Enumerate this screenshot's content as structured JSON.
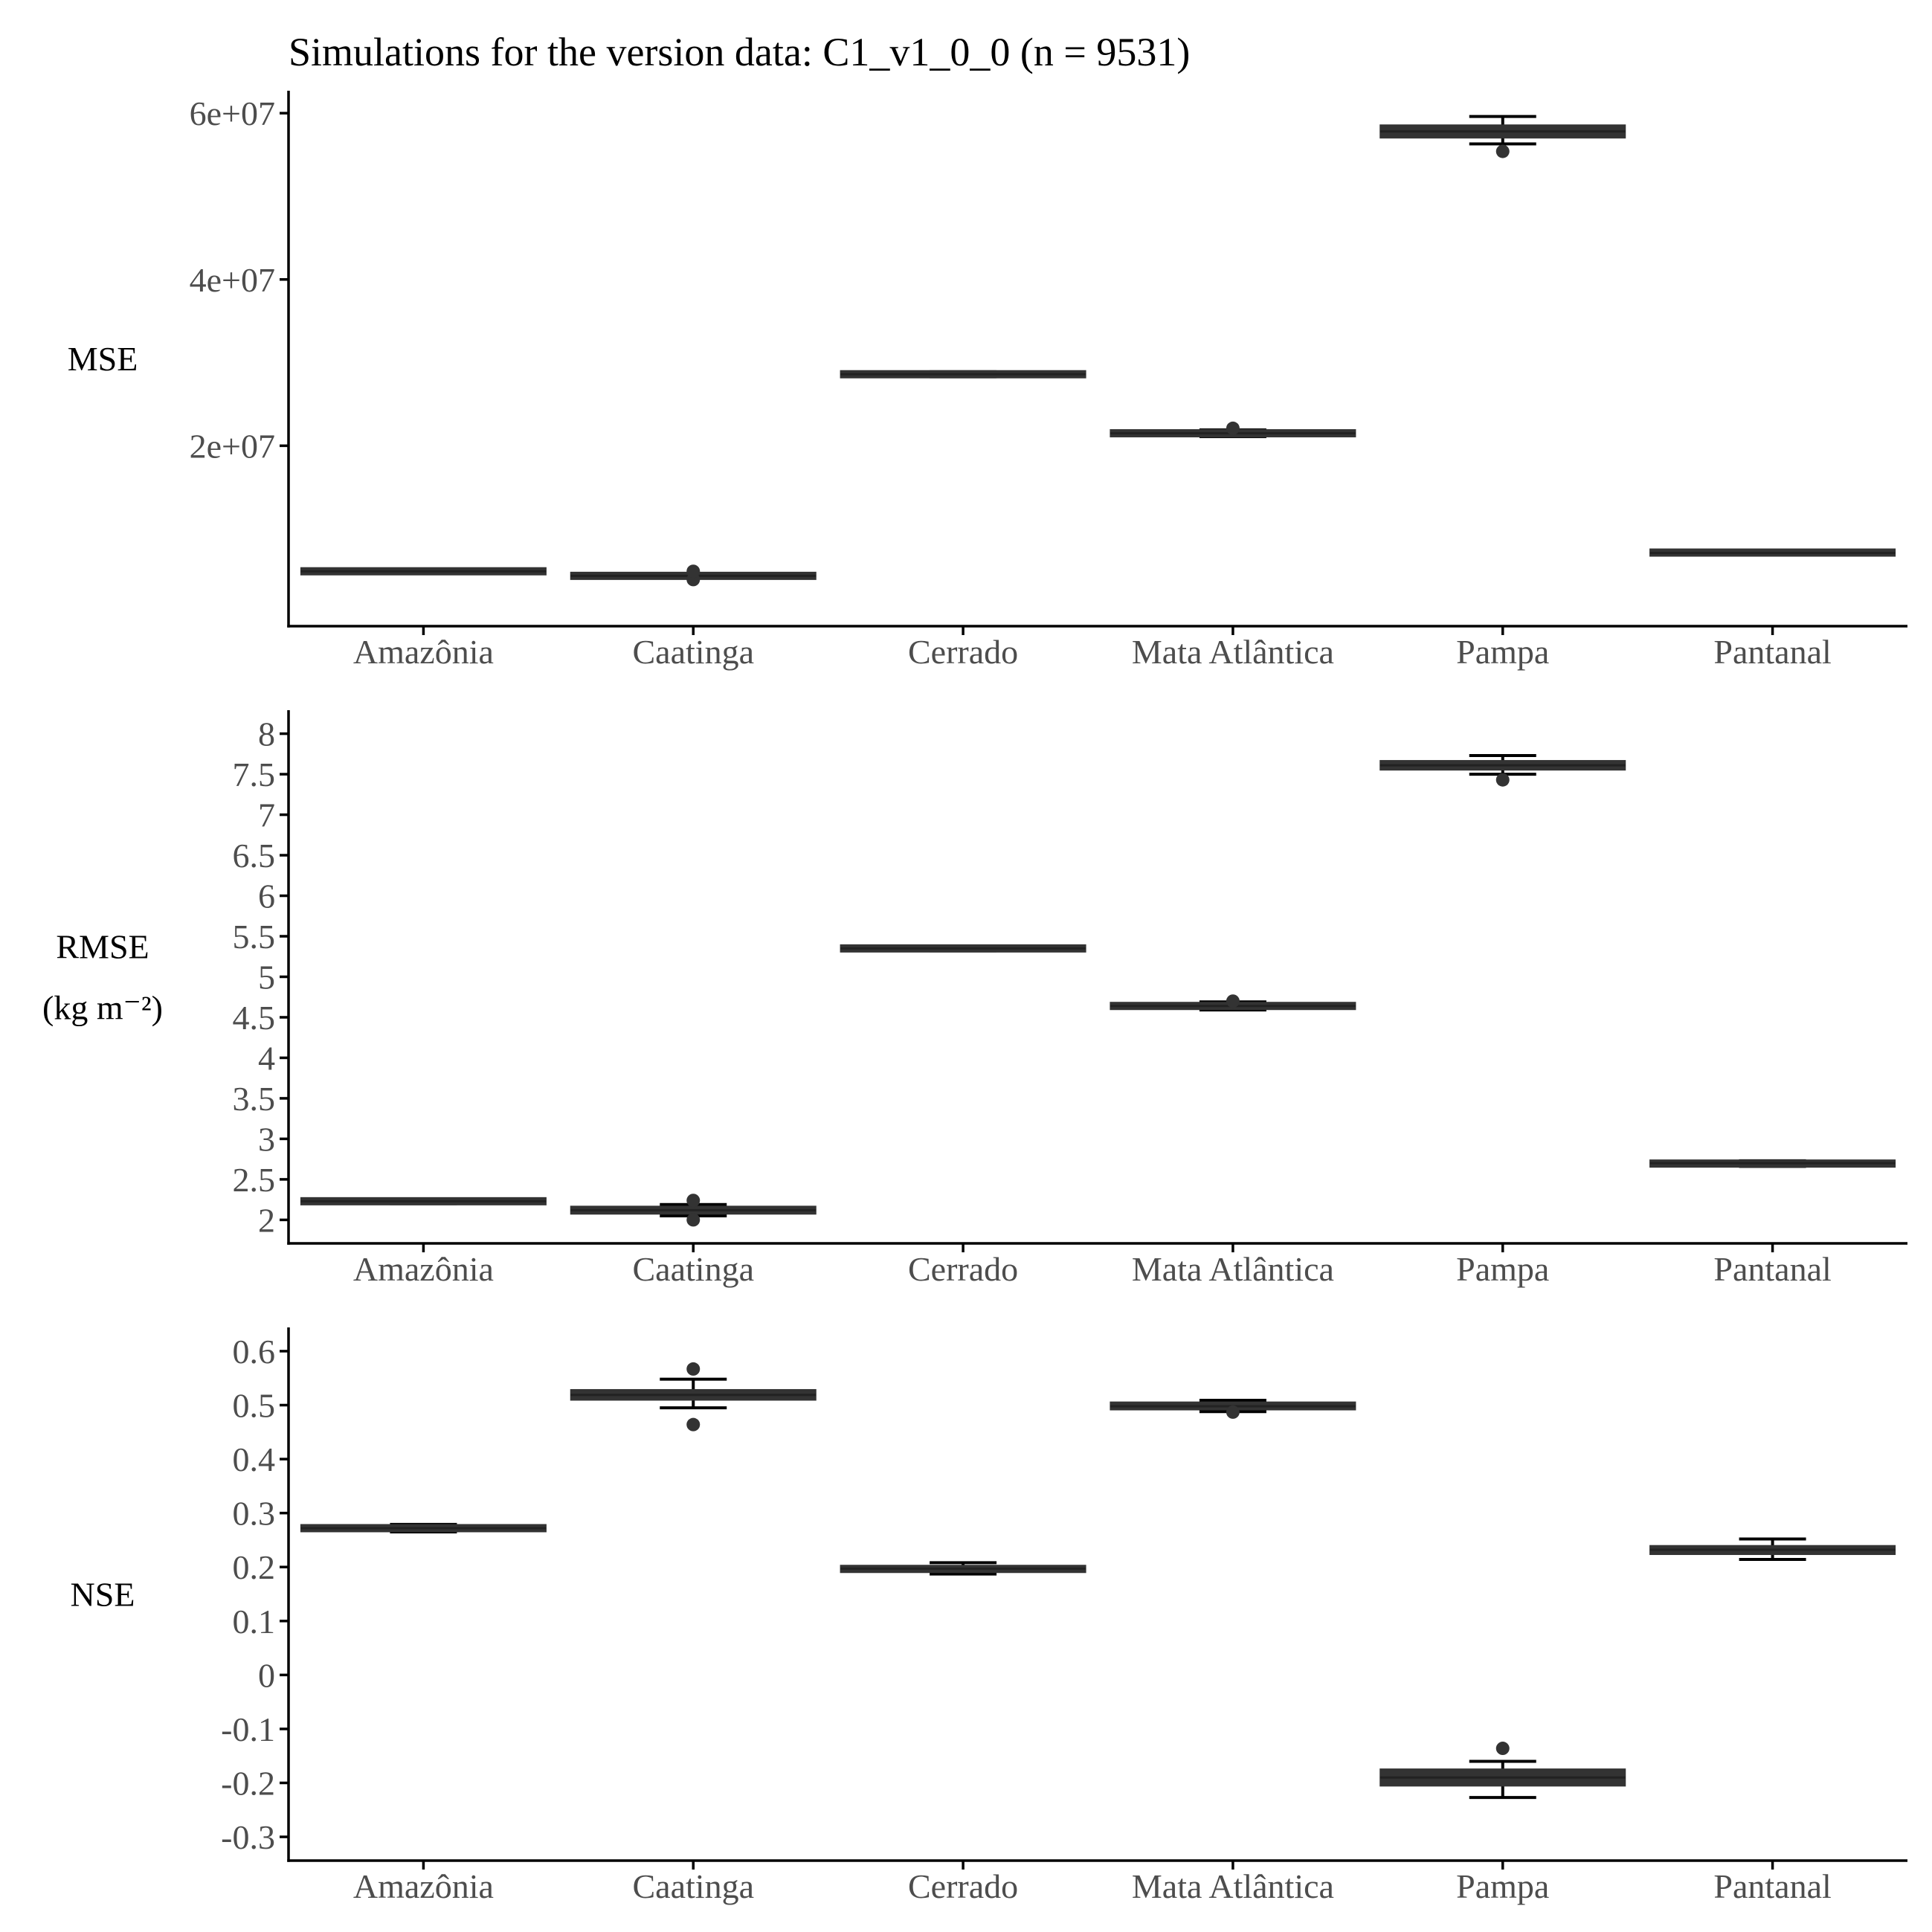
{
  "figure_title": "Simulations for the version data: C1_v1_0_0 (n = 9531)",
  "chart_data": [
    {
      "type": "box",
      "ylabel": [
        "MSE"
      ],
      "categories": [
        "Amazônia",
        "Caatinga",
        "Cerrado",
        "Mata Atlântica",
        "Pampa",
        "Pantanal"
      ],
      "ylim": [
        -1700000,
        62700000
      ],
      "yticks": [
        20000000,
        40000000,
        60000000
      ],
      "yticklabels": [
        "2e+07",
        "4e+07",
        "6e+07"
      ],
      "boxes": [
        {
          "q1": 4800000,
          "median": 4900000,
          "q3": 5000000,
          "whisker_low": 4800000,
          "whisker_high": 5000000,
          "outliers": []
        },
        {
          "q1": 4200000,
          "median": 4350000,
          "q3": 4500000,
          "whisker_low": 4100000,
          "whisker_high": 4600000,
          "outliers": [
            3900000,
            4900000
          ]
        },
        {
          "q1": 28400000,
          "median": 28600000,
          "q3": 28800000,
          "whisker_low": 28300000,
          "whisker_high": 28900000,
          "outliers": []
        },
        {
          "q1": 21200000,
          "median": 21500000,
          "q3": 21800000,
          "whisker_low": 21100000,
          "whisker_high": 21900000,
          "outliers": [
            22100000
          ]
        },
        {
          "q1": 57000000,
          "median": 57800000,
          "q3": 58600000,
          "whisker_low": 56300000,
          "whisker_high": 59600000,
          "outliers": [
            55400000
          ]
        },
        {
          "q1": 7000000,
          "median": 7100000,
          "q3": 7300000,
          "whisker_low": 6900000,
          "whisker_high": 7400000,
          "outliers": []
        }
      ]
    },
    {
      "type": "box",
      "ylabel": [
        "RMSE",
        "(kg m⁻²)"
      ],
      "categories": [
        "Amazônia",
        "Caatinga",
        "Cerrado",
        "Mata Atlântica",
        "Pampa",
        "Pantanal"
      ],
      "ylim": [
        1.71,
        8.29
      ],
      "yticks": [
        2,
        2.5,
        3,
        3.5,
        4,
        4.5,
        5,
        5.5,
        6,
        6.5,
        7,
        7.5,
        8
      ],
      "yticklabels": [
        "2",
        "2.5",
        "3",
        "3.5",
        "4",
        "4.5",
        "5",
        "5.5",
        "6",
        "6.5",
        "7",
        "7.5",
        "8"
      ],
      "boxes": [
        {
          "q1": 2.2,
          "median": 2.23,
          "q3": 2.26,
          "whisker_low": 2.2,
          "whisker_high": 2.26,
          "outliers": []
        },
        {
          "q1": 2.07,
          "median": 2.12,
          "q3": 2.17,
          "whisker_low": 2.05,
          "whisker_high": 2.19,
          "outliers": [
            2.0,
            2.24
          ]
        },
        {
          "q1": 5.33,
          "median": 5.35,
          "q3": 5.37,
          "whisker_low": 5.32,
          "whisker_high": 5.38,
          "outliers": []
        },
        {
          "q1": 4.6,
          "median": 4.64,
          "q3": 4.68,
          "whisker_low": 4.59,
          "whisker_high": 4.69,
          "outliers": [
            4.7
          ]
        },
        {
          "q1": 7.55,
          "median": 7.61,
          "q3": 7.67,
          "whisker_low": 7.5,
          "whisker_high": 7.73,
          "outliers": [
            7.43
          ]
        },
        {
          "q1": 2.67,
          "median": 2.7,
          "q3": 2.72,
          "whisker_low": 2.66,
          "whisker_high": 2.73,
          "outliers": []
        }
      ]
    },
    {
      "type": "box",
      "ylabel": [
        "NSE"
      ],
      "categories": [
        "Amazônia",
        "Caatinga",
        "Cerrado",
        "Mata Atlântica",
        "Pampa",
        "Pantanal"
      ],
      "ylim": [
        -0.344,
        0.644
      ],
      "yticks": [
        -0.3,
        -0.2,
        -0.1,
        0,
        0.1,
        0.2,
        0.3,
        0.4,
        0.5,
        0.6
      ],
      "yticklabels": [
        "-0.3",
        "-0.2",
        "-0.1",
        "0",
        "0.1",
        "0.2",
        "0.3",
        "0.4",
        "0.5",
        "0.6"
      ],
      "boxes": [
        {
          "q1": 0.266,
          "median": 0.272,
          "q3": 0.278,
          "whisker_low": 0.265,
          "whisker_high": 0.279,
          "outliers": []
        },
        {
          "q1": 0.509,
          "median": 0.519,
          "q3": 0.529,
          "whisker_low": 0.495,
          "whisker_high": 0.548,
          "outliers": [
            0.464,
            0.567
          ]
        },
        {
          "q1": 0.19,
          "median": 0.197,
          "q3": 0.203,
          "whisker_low": 0.187,
          "whisker_high": 0.208,
          "outliers": []
        },
        {
          "q1": 0.491,
          "median": 0.498,
          "q3": 0.506,
          "whisker_low": 0.488,
          "whisker_high": 0.509,
          "outliers": [
            0.487
          ]
        },
        {
          "q1": -0.206,
          "median": -0.19,
          "q3": -0.174,
          "whisker_low": -0.227,
          "whisker_high": -0.16,
          "outliers": [
            -0.136
          ]
        },
        {
          "q1": 0.223,
          "median": 0.232,
          "q3": 0.24,
          "whisker_low": 0.214,
          "whisker_high": 0.252,
          "outliers": []
        }
      ]
    }
  ]
}
